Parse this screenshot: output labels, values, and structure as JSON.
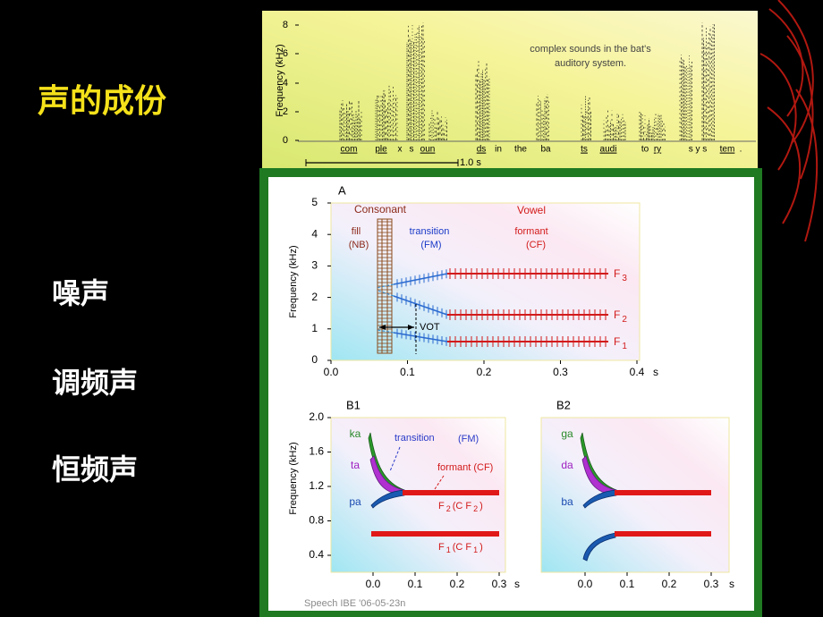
{
  "slide": {
    "title": "声的成份",
    "items": [
      "噪声",
      "调频声",
      "恒频声"
    ],
    "footer": "Speech   IBE   '06-05-23n"
  },
  "spectrogram": {
    "y_label": "Frequency (kHz)",
    "y_ticks": [
      "0",
      "2",
      "4",
      "6",
      "8"
    ],
    "caption": [
      "complex sounds in the bat's",
      "auditory system."
    ],
    "words": [
      "com",
      "ple",
      "x",
      "s",
      "oun",
      "ds",
      "in",
      "the",
      "ba",
      "ts",
      "audi",
      "to",
      "ry",
      "s y s",
      "tem",
      "."
    ],
    "scale": "1.0 s"
  },
  "panel_a": {
    "label": "A",
    "y_label": "Frequency (kHz)",
    "y_ticks": [
      "0",
      "1",
      "2",
      "3",
      "4",
      "5"
    ],
    "x_ticks": [
      "0.0",
      "0.1",
      "0.2",
      "0.3",
      "0.4"
    ],
    "x_unit": "s",
    "consonant": "Consonant",
    "vowel": "Vowel",
    "fill": [
      "fill",
      "(NB)"
    ],
    "transition": [
      "transition",
      "(FM)"
    ],
    "formant": [
      "formant",
      "(CF)"
    ],
    "vot": "VOT",
    "formants": [
      {
        "name": "F",
        "sub": "3"
      },
      {
        "name": "F",
        "sub": "2"
      },
      {
        "name": "F",
        "sub": "1"
      }
    ]
  },
  "panel_b1": {
    "label": "B1",
    "y_label": "Frequency (kHz)",
    "y_ticks": [
      "0.4",
      "0.8",
      "1.2",
      "1.6",
      "2.0"
    ],
    "x_ticks": [
      "0.0",
      "0.1",
      "0.2",
      "0.3"
    ],
    "x_unit": "s",
    "syllables": [
      "ka",
      "ta",
      "pa"
    ],
    "transition": "transition",
    "fm": "(FM)",
    "formant": "formant (CF)",
    "f2_label": [
      "F",
      "2",
      "(C F",
      "2",
      ")"
    ],
    "f1_label": [
      "F",
      "1",
      "(C F",
      "1",
      ")"
    ]
  },
  "panel_b2": {
    "label": "B2",
    "x_ticks": [
      "0.0",
      "0.1",
      "0.2",
      "0.3"
    ],
    "x_unit": "s",
    "syllables": [
      "ga",
      "da",
      "ba"
    ]
  }
}
